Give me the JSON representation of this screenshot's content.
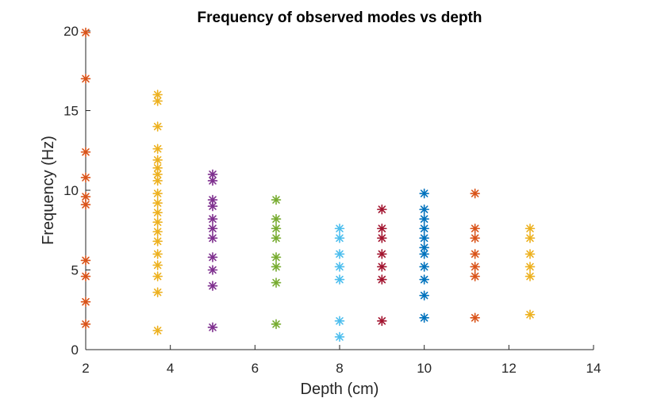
{
  "chart_data": {
    "type": "scatter",
    "title": "Frequency of observed modes vs depth",
    "xlabel": "Depth (cm)",
    "ylabel": "Frequency (Hz)",
    "xlim": [
      2,
      14
    ],
    "ylim": [
      0,
      20
    ],
    "xticks": [
      "2",
      "4",
      "6",
      "8",
      "10",
      "12",
      "14"
    ],
    "yticks": [
      "0",
      "5",
      "10",
      "15",
      "20"
    ],
    "xtick_values": [
      2,
      4,
      6,
      8,
      10,
      12,
      14
    ],
    "ytick_values": [
      0,
      5,
      10,
      15,
      20
    ],
    "grid": false,
    "marker": "asterisk",
    "series": [
      {
        "color": "#D95319",
        "x": 2.0,
        "values": [
          1.6,
          3.0,
          4.6,
          5.6,
          9.1,
          9.6,
          10.8,
          12.4,
          17.0,
          19.9
        ]
      },
      {
        "color": "#EDB120",
        "x": 3.7,
        "values": [
          1.2,
          3.6,
          4.6,
          5.3,
          6.0,
          6.8,
          7.4,
          8.0,
          8.6,
          9.2,
          9.8,
          10.6,
          11.0,
          11.4,
          11.9,
          12.6,
          14.0,
          15.6,
          16.0
        ]
      },
      {
        "color": "#7E2F8E",
        "x": 5.0,
        "values": [
          1.4,
          4.0,
          5.0,
          5.8,
          7.0,
          7.6,
          8.2,
          9.0,
          9.4,
          10.6,
          11.0
        ]
      },
      {
        "color": "#77AC30",
        "x": 6.5,
        "values": [
          1.6,
          4.2,
          5.2,
          5.8,
          7.0,
          7.6,
          8.2,
          9.4
        ]
      },
      {
        "color": "#4DBEEE",
        "x": 8.0,
        "values": [
          0.8,
          1.8,
          4.4,
          5.2,
          6.0,
          7.0,
          7.6
        ]
      },
      {
        "color": "#A2142F",
        "x": 9.0,
        "values": [
          1.8,
          4.4,
          5.2,
          6.0,
          7.0,
          7.6,
          8.8
        ]
      },
      {
        "color": "#0072BD",
        "x": 10.0,
        "values": [
          2.0,
          3.4,
          4.4,
          5.2,
          6.0,
          6.4,
          7.0,
          7.6,
          8.2,
          8.8,
          9.8
        ]
      },
      {
        "color": "#D95319",
        "x": 11.2,
        "values": [
          2.0,
          4.6,
          5.2,
          6.0,
          7.0,
          7.6,
          9.8
        ]
      },
      {
        "color": "#EDB120",
        "x": 12.5,
        "values": [
          2.2,
          4.6,
          5.2,
          6.0,
          7.0,
          7.6
        ]
      }
    ]
  }
}
